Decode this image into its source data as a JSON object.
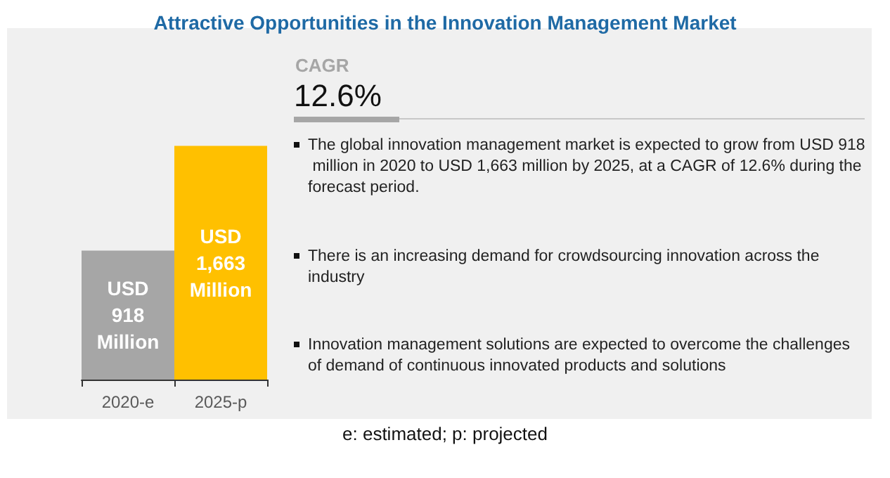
{
  "chart_data": {
    "type": "bar",
    "title": "Attractive Opportunities in the Innovation Management Market",
    "categories": [
      "2020-e",
      "2025-p"
    ],
    "values": [
      918,
      1663
    ],
    "colors": [
      "#a6a6a6",
      "#ffc000"
    ],
    "value_labels": [
      "USD\n918\nMillion",
      "USD\n1,663\nMillion"
    ],
    "annotations": [
      "CAGR",
      "12.6%",
      "The global innovation management market is expected to grow from USD 918 million in 2020 to USD 1,663 million by 2025, at a CAGR of 12.6% during the forecast period.",
      "There is an increasing demand for crowdsourcing innovation across the industry",
      "Innovation management solutions are expected to overcome the challenges of demand of continuous innovated products and solutions",
      "e: estimated; p: projected"
    ]
  }
}
